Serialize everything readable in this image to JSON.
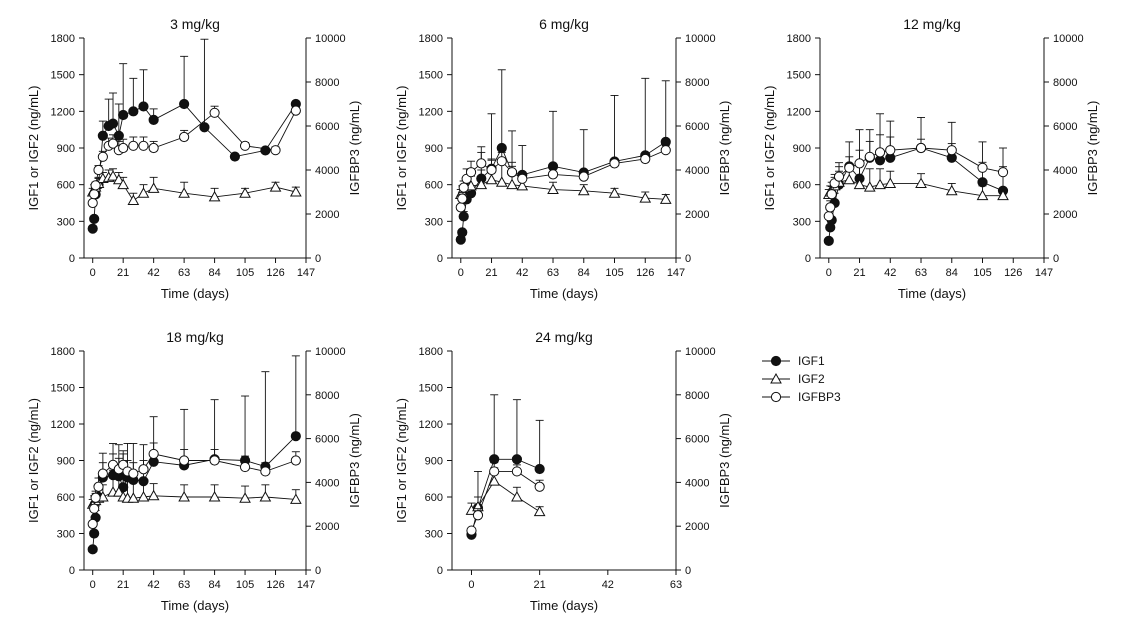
{
  "legend": [
    {
      "key": "igf1",
      "label": "IGF1",
      "marker": "filled-circle"
    },
    {
      "key": "igf2",
      "label": "IGF2",
      "marker": "open-triangle"
    },
    {
      "key": "igfbp3",
      "label": "IGFBP3",
      "marker": "open-circle"
    }
  ],
  "chart_data": [
    {
      "type": "line",
      "title": "3 mg/kg",
      "xlabel": "Time (days)",
      "ylabel": "IGF1 or IGF2 (ng/mL)",
      "y2label": "IGFBP3 (ng/mL)",
      "xlim": [
        -6,
        147
      ],
      "xticks": [
        0,
        21,
        42,
        63,
        84,
        105,
        126,
        147
      ],
      "ylim": [
        0,
        1800
      ],
      "yticks": [
        0,
        300,
        600,
        900,
        1200,
        1500,
        1800
      ],
      "y2lim": [
        0,
        10000
      ],
      "y2ticks": [
        0,
        2000,
        4000,
        6000,
        8000,
        10000
      ],
      "series": [
        {
          "name": "IGF1",
          "axis": "left",
          "x": [
            0,
            1,
            2,
            4,
            7,
            11,
            14,
            18,
            21,
            28,
            35,
            42,
            63,
            77,
            98,
            119,
            140
          ],
          "y": [
            240,
            320,
            520,
            600,
            1000,
            1080,
            1100,
            1000,
            1170,
            1200,
            1240,
            1130,
            1260,
            1070,
            830,
            880,
            1260
          ],
          "err": [
            0,
            0,
            0,
            60,
            120,
            220,
            250,
            260,
            420,
            270,
            300,
            90,
            390,
            720,
            0,
            0,
            0
          ]
        },
        {
          "name": "IGF2",
          "axis": "left",
          "x": [
            0,
            1,
            2,
            4,
            7,
            11,
            14,
            18,
            21,
            28,
            35,
            42,
            63,
            84,
            105,
            126,
            140
          ],
          "y": [
            540,
            560,
            580,
            610,
            650,
            660,
            670,
            640,
            600,
            470,
            530,
            570,
            530,
            500,
            530,
            580,
            540
          ],
          "err": [
            30,
            40,
            40,
            40,
            50,
            60,
            60,
            60,
            60,
            60,
            70,
            90,
            90,
            70,
            40,
            40,
            40
          ]
        },
        {
          "name": "IGFBP3",
          "axis": "right",
          "x": [
            0,
            1,
            2,
            4,
            7,
            11,
            14,
            18,
            21,
            28,
            35,
            42,
            63,
            84,
            105,
            126,
            140
          ],
          "y": [
            2500,
            2900,
            3300,
            4000,
            4600,
            5100,
            5200,
            4900,
            5000,
            5100,
            5100,
            5000,
            5500,
            6600,
            5100,
            4900,
            6700
          ],
          "err": [
            0,
            0,
            0,
            200,
            250,
            350,
            400,
            400,
            400,
            400,
            400,
            300,
            300,
            300,
            150,
            150,
            150
          ]
        }
      ]
    },
    {
      "type": "line",
      "title": "6 mg/kg",
      "xlabel": "Time (days)",
      "ylabel": "IGF1 or IGF2 (ng/mL)",
      "y2label": "IGFBP3 (ng/mL)",
      "xlim": [
        -6,
        147
      ],
      "xticks": [
        0,
        21,
        42,
        63,
        84,
        105,
        126,
        147
      ],
      "ylim": [
        0,
        1800
      ],
      "yticks": [
        0,
        300,
        600,
        900,
        1200,
        1500,
        1800
      ],
      "y2lim": [
        0,
        10000
      ],
      "y2ticks": [
        0,
        2000,
        4000,
        6000,
        8000,
        10000
      ],
      "series": [
        {
          "name": "IGF1",
          "axis": "left",
          "x": [
            0,
            1,
            2,
            4,
            7,
            14,
            21,
            28,
            35,
            42,
            63,
            84,
            105,
            126,
            140
          ],
          "y": [
            150,
            210,
            340,
            480,
            530,
            650,
            730,
            900,
            700,
            680,
            750,
            700,
            790,
            840,
            950
          ],
          "err": [
            0,
            0,
            40,
            130,
            200,
            260,
            450,
            640,
            340,
            240,
            450,
            350,
            540,
            630,
            500
          ]
        },
        {
          "name": "IGF2",
          "axis": "left",
          "x": [
            0,
            1,
            2,
            4,
            7,
            14,
            21,
            28,
            35,
            42,
            63,
            84,
            105,
            126,
            140
          ],
          "y": [
            520,
            540,
            570,
            580,
            590,
            600,
            640,
            620,
            600,
            590,
            560,
            550,
            530,
            490,
            480
          ],
          "err": [
            40,
            50,
            60,
            70,
            80,
            120,
            160,
            170,
            150,
            110,
            60,
            50,
            40,
            50,
            40
          ]
        },
        {
          "name": "IGFBP3",
          "axis": "right",
          "x": [
            0,
            1,
            2,
            4,
            7,
            14,
            21,
            28,
            35,
            42,
            63,
            84,
            105,
            126,
            140
          ],
          "y": [
            2300,
            2700,
            3200,
            3600,
            3900,
            4300,
            4000,
            4400,
            3900,
            3600,
            3800,
            3700,
            4300,
            4500,
            4900
          ],
          "err": [
            0,
            200,
            300,
            450,
            500,
            500,
            500,
            400,
            450,
            300,
            300,
            200,
            200,
            200,
            200
          ]
        }
      ]
    },
    {
      "type": "line",
      "title": "12 mg/kg",
      "xlabel": "Time (days)",
      "ylabel": "IGF1 or IGF2 (ng/mL)",
      "y2label": "IGFBP3 (ng/mL)",
      "xlim": [
        -6,
        147
      ],
      "xticks": [
        0,
        21,
        42,
        63,
        84,
        105,
        126,
        147
      ],
      "ylim": [
        0,
        1800
      ],
      "yticks": [
        0,
        300,
        600,
        900,
        1200,
        1500,
        1800
      ],
      "y2lim": [
        0,
        10000
      ],
      "y2ticks": [
        0,
        2000,
        4000,
        6000,
        8000,
        10000
      ],
      "series": [
        {
          "name": "IGF1",
          "axis": "left",
          "x": [
            0,
            1,
            2,
            4,
            7,
            14,
            21,
            28,
            35,
            42,
            63,
            84,
            105,
            119
          ],
          "y": [
            140,
            250,
            310,
            450,
            600,
            750,
            650,
            820,
            800,
            820,
            900,
            820,
            620,
            550
          ],
          "err": [
            0,
            0,
            0,
            80,
            180,
            200,
            400,
            230,
            380,
            300,
            250,
            290,
            330,
            350
          ]
        },
        {
          "name": "IGF2",
          "axis": "left",
          "x": [
            0,
            1,
            2,
            4,
            7,
            14,
            21,
            28,
            35,
            42,
            63,
            84,
            105,
            119
          ],
          "y": [
            520,
            540,
            560,
            590,
            620,
            640,
            600,
            580,
            600,
            610,
            610,
            550,
            510,
            510
          ],
          "err": [
            40,
            50,
            60,
            70,
            90,
            130,
            180,
            150,
            130,
            100,
            80,
            60,
            80,
            50
          ]
        },
        {
          "name": "IGFBP3",
          "axis": "right",
          "x": [
            0,
            1,
            2,
            4,
            7,
            14,
            21,
            28,
            35,
            42,
            63,
            84,
            105,
            119
          ],
          "y": [
            1900,
            2300,
            2900,
            3400,
            3700,
            4100,
            4300,
            4600,
            4800,
            4900,
            5000,
            4900,
            4100,
            3900
          ],
          "err": [
            0,
            300,
            350,
            400,
            450,
            500,
            600,
            700,
            800,
            600,
            400,
            300,
            250,
            250
          ]
        }
      ]
    },
    {
      "type": "line",
      "title": "18 mg/kg",
      "xlabel": "Time (days)",
      "ylabel": "IGF1 or IGF2 (ng/mL)",
      "y2label": "IGFBP3 (ng/mL)",
      "xlim": [
        -6,
        147
      ],
      "xticks": [
        0,
        21,
        42,
        63,
        84,
        105,
        126,
        147
      ],
      "ylim": [
        0,
        1800
      ],
      "yticks": [
        0,
        300,
        600,
        900,
        1200,
        1500,
        1800
      ],
      "y2lim": [
        0,
        10000
      ],
      "y2ticks": [
        0,
        2000,
        4000,
        6000,
        8000,
        10000
      ],
      "series": [
        {
          "name": "IGF1",
          "axis": "left",
          "x": [
            0,
            1,
            2,
            4,
            7,
            14,
            18,
            21,
            24,
            28,
            35,
            42,
            63,
            84,
            105,
            119,
            140
          ],
          "y": [
            170,
            300,
            430,
            600,
            760,
            780,
            770,
            680,
            760,
            740,
            730,
            890,
            860,
            910,
            900,
            850,
            1100
          ],
          "err": [
            0,
            0,
            60,
            100,
            200,
            260,
            260,
            300,
            280,
            300,
            300,
            370,
            460,
            490,
            530,
            780,
            660
          ]
        },
        {
          "name": "IGF2",
          "axis": "left",
          "x": [
            0,
            1,
            2,
            4,
            7,
            14,
            18,
            21,
            24,
            28,
            35,
            42,
            63,
            84,
            105,
            119,
            140
          ],
          "y": [
            540,
            560,
            570,
            590,
            600,
            640,
            640,
            600,
            590,
            590,
            600,
            610,
            600,
            600,
            590,
            600,
            580
          ],
          "err": [
            40,
            50,
            60,
            80,
            100,
            180,
            180,
            170,
            170,
            150,
            140,
            100,
            100,
            100,
            100,
            100,
            80
          ]
        },
        {
          "name": "IGFBP3",
          "axis": "right",
          "x": [
            0,
            1,
            2,
            4,
            7,
            14,
            18,
            21,
            24,
            28,
            35,
            42,
            63,
            84,
            105,
            119,
            140
          ],
          "y": [
            2100,
            2800,
            3300,
            3800,
            4400,
            4800,
            4600,
            4800,
            4500,
            4400,
            4600,
            5300,
            5000,
            5000,
            4700,
            4500,
            5000
          ],
          "err": [
            0,
            300,
            300,
            400,
            500,
            500,
            500,
            500,
            500,
            500,
            400,
            500,
            500,
            500,
            500,
            400,
            400
          ]
        }
      ]
    },
    {
      "type": "line",
      "title": "24 mg/kg",
      "xlabel": "Time (days)",
      "ylabel": "IGF1 or IGF2 (ng/mL)",
      "y2label": "IGFBP3 (ng/mL)",
      "xlim": [
        -6,
        63
      ],
      "xticks": [
        0,
        21,
        42,
        63
      ],
      "ylim": [
        0,
        1800
      ],
      "yticks": [
        0,
        300,
        600,
        900,
        1200,
        1500,
        1800
      ],
      "y2lim": [
        0,
        10000
      ],
      "y2ticks": [
        0,
        2000,
        4000,
        6000,
        8000,
        10000
      ],
      "series": [
        {
          "name": "IGF1",
          "axis": "left",
          "x": [
            0,
            2,
            7,
            14,
            21
          ],
          "y": [
            290,
            510,
            910,
            910,
            830
          ],
          "err": [
            0,
            300,
            530,
            490,
            400
          ]
        },
        {
          "name": "IGF2",
          "axis": "left",
          "x": [
            0,
            2,
            7,
            14,
            21
          ],
          "y": [
            490,
            520,
            730,
            600,
            480
          ],
          "err": [
            60,
            80,
            110,
            80,
            40
          ]
        },
        {
          "name": "IGFBP3",
          "axis": "right",
          "x": [
            0,
            2,
            7,
            14,
            21
          ],
          "y": [
            1800,
            2500,
            4500,
            4500,
            3800
          ],
          "err": [
            0,
            300,
            400,
            300,
            300
          ]
        }
      ]
    }
  ]
}
